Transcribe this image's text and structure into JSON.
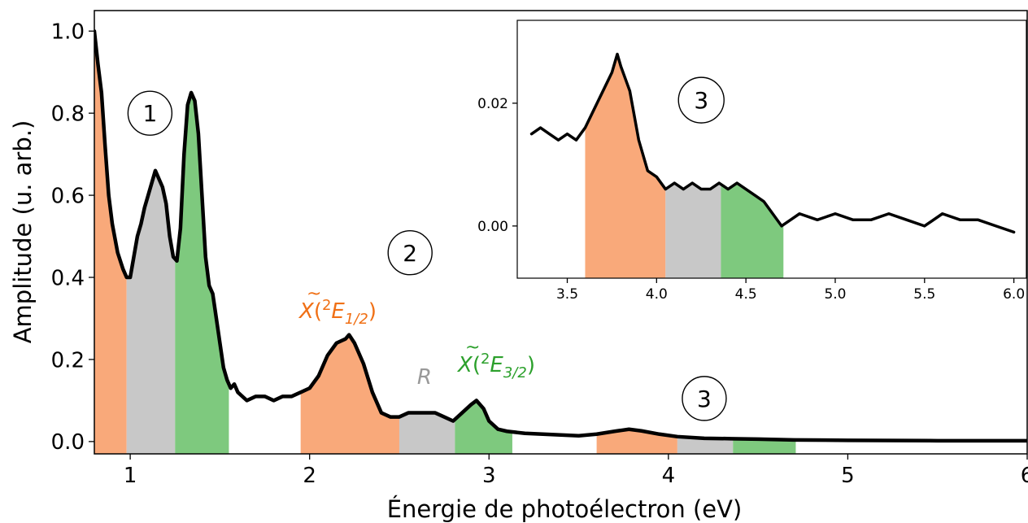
{
  "chart_data": [
    {
      "type": "area",
      "xlabel": "Énergie de photoélectron (eV)",
      "ylabel": "Amplitude (u. arb.)",
      "xlim": [
        0.8,
        6.0
      ],
      "ylim": [
        -0.03,
        1.05
      ],
      "x_ticks": [
        1,
        2,
        3,
        4,
        5,
        6
      ],
      "x_tick_labels": [
        "1",
        "2",
        "3",
        "4",
        "5",
        "6"
      ],
      "y_ticks": [
        0.0,
        0.2,
        0.4,
        0.6,
        0.8,
        1.0
      ],
      "y_tick_labels": [
        "0.0",
        "0.2",
        "0.4",
        "0.6",
        "0.8",
        "1.0"
      ],
      "grid": false,
      "series": [
        {
          "x": [
            0.8,
            0.82,
            0.84,
            0.86,
            0.88,
            0.9,
            0.93,
            0.96,
            0.98,
            1.0,
            1.02,
            1.04,
            1.06,
            1.08,
            1.1,
            1.12,
            1.14,
            1.16,
            1.18,
            1.2,
            1.22,
            1.24,
            1.26,
            1.28,
            1.3,
            1.32,
            1.34,
            1.36,
            1.38,
            1.4,
            1.42,
            1.44,
            1.46,
            1.48,
            1.5,
            1.52,
            1.54,
            1.56,
            1.58,
            1.6,
            1.65,
            1.7,
            1.75,
            1.8,
            1.85,
            1.9,
            1.95,
            2.0,
            2.05,
            2.1,
            2.15,
            2.2,
            2.22,
            2.25,
            2.3,
            2.35,
            2.4,
            2.45,
            2.5,
            2.55,
            2.6,
            2.65,
            2.7,
            2.75,
            2.8,
            2.85,
            2.9,
            2.93,
            2.97,
            3.0,
            3.05,
            3.1,
            3.2,
            3.3,
            3.4,
            3.5,
            3.6,
            3.7,
            3.78,
            3.85,
            3.95,
            4.05,
            4.2,
            4.35,
            4.5,
            4.7,
            5.0,
            5.5,
            6.0
          ],
          "y": [
            1.0,
            0.92,
            0.85,
            0.72,
            0.6,
            0.53,
            0.46,
            0.42,
            0.4,
            0.4,
            0.45,
            0.5,
            0.53,
            0.57,
            0.6,
            0.63,
            0.66,
            0.64,
            0.62,
            0.58,
            0.5,
            0.45,
            0.44,
            0.52,
            0.7,
            0.82,
            0.85,
            0.83,
            0.75,
            0.6,
            0.45,
            0.38,
            0.36,
            0.3,
            0.24,
            0.18,
            0.15,
            0.13,
            0.14,
            0.12,
            0.1,
            0.11,
            0.11,
            0.1,
            0.11,
            0.11,
            0.12,
            0.13,
            0.16,
            0.21,
            0.24,
            0.25,
            0.26,
            0.24,
            0.19,
            0.12,
            0.07,
            0.06,
            0.06,
            0.07,
            0.07,
            0.07,
            0.07,
            0.06,
            0.05,
            0.07,
            0.09,
            0.1,
            0.08,
            0.05,
            0.03,
            0.025,
            0.02,
            0.018,
            0.016,
            0.014,
            0.018,
            0.025,
            0.03,
            0.026,
            0.018,
            0.012,
            0.008,
            0.007,
            0.006,
            0.004,
            0.003,
            0.002,
            0.002
          ]
        }
      ],
      "bands": [
        {
          "from": 0.8,
          "to": 0.98,
          "color": "#f9a97a"
        },
        {
          "from": 0.98,
          "to": 1.25,
          "color": "#c8c8c8"
        },
        {
          "from": 1.25,
          "to": 1.55,
          "color": "#7ec97e"
        },
        {
          "from": 1.95,
          "to": 2.5,
          "color": "#f9a97a"
        },
        {
          "from": 2.5,
          "to": 2.81,
          "color": "#c8c8c8"
        },
        {
          "from": 2.81,
          "to": 3.13,
          "color": "#7ec97e"
        },
        {
          "from": 3.6,
          "to": 4.05,
          "color": "#f9a97a"
        },
        {
          "from": 4.05,
          "to": 4.36,
          "color": "#c8c8c8"
        },
        {
          "from": 4.36,
          "to": 4.71,
          "color": "#7ec97e"
        }
      ],
      "annotations": [
        {
          "text": "1",
          "circled": true,
          "x": 1.11,
          "y": 0.8
        },
        {
          "text": "2",
          "circled": true,
          "x": 2.56,
          "y": 0.46
        },
        {
          "text": "3",
          "circled": true,
          "x": 4.2,
          "y": 0.105
        },
        {
          "text": "R",
          "color": "#999999",
          "x": 2.64,
          "y": 0.14
        }
      ],
      "peak_labels": [
        {
          "symbol": "X",
          "term": "2",
          "E": "E",
          "sub": "1/2",
          "color": "#f07016"
        },
        {
          "symbol": "X",
          "term": "2",
          "E": "E",
          "sub": "3/2",
          "color": "#2ca02c"
        }
      ]
    },
    {
      "type": "area",
      "inset": true,
      "xlim": [
        3.22,
        6.07
      ],
      "ylim": [
        -0.0085,
        0.0335
      ],
      "x_ticks": [
        3.5,
        4.0,
        4.5,
        5.0,
        5.5,
        6.0
      ],
      "x_tick_labels": [
        "3.5",
        "4.0",
        "4.5",
        "5.0",
        "5.5",
        "6.0"
      ],
      "y_ticks": [
        0.0,
        0.02
      ],
      "y_tick_labels": [
        "0.00",
        "0.02"
      ],
      "grid": false,
      "series": [
        {
          "x": [
            3.3,
            3.35,
            3.4,
            3.45,
            3.5,
            3.55,
            3.6,
            3.65,
            3.7,
            3.75,
            3.78,
            3.8,
            3.85,
            3.9,
            3.95,
            4.0,
            4.05,
            4.1,
            4.15,
            4.2,
            4.25,
            4.3,
            4.35,
            4.4,
            4.45,
            4.5,
            4.55,
            4.6,
            4.65,
            4.7,
            4.75,
            4.8,
            4.9,
            5.0,
            5.1,
            5.2,
            5.3,
            5.4,
            5.5,
            5.6,
            5.7,
            5.8,
            5.9,
            6.0
          ],
          "y": [
            0.015,
            0.016,
            0.015,
            0.014,
            0.015,
            0.014,
            0.016,
            0.019,
            0.022,
            0.025,
            0.028,
            0.026,
            0.022,
            0.014,
            0.009,
            0.008,
            0.006,
            0.007,
            0.006,
            0.007,
            0.006,
            0.006,
            0.007,
            0.006,
            0.007,
            0.006,
            0.005,
            0.004,
            0.002,
            0.0,
            0.001,
            0.002,
            0.001,
            0.002,
            0.001,
            0.001,
            0.002,
            0.001,
            0.0,
            0.002,
            0.001,
            0.001,
            0.0,
            -0.001
          ]
        }
      ],
      "bands": [
        {
          "from": 3.6,
          "to": 4.05,
          "color": "#f9a97a"
        },
        {
          "from": 4.05,
          "to": 4.36,
          "color": "#c8c8c8"
        },
        {
          "from": 4.36,
          "to": 4.71,
          "color": "#7ec97e"
        }
      ],
      "annotations": [
        {
          "text": "3",
          "circled": true,
          "x": 4.25,
          "y": 0.0205
        }
      ]
    }
  ]
}
